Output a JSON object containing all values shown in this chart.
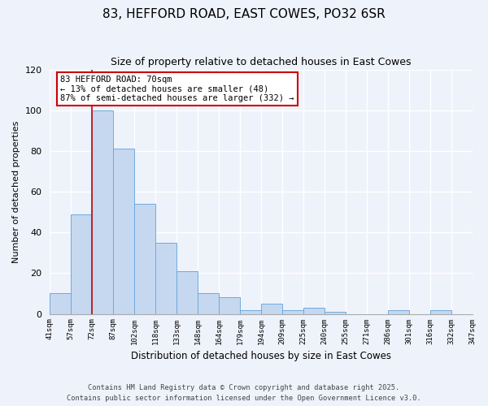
{
  "title": "83, HEFFORD ROAD, EAST COWES, PO32 6SR",
  "subtitle": "Size of property relative to detached houses in East Cowes",
  "xlabel": "Distribution of detached houses by size in East Cowes",
  "ylabel": "Number of detached properties",
  "bar_values": [
    10,
    49,
    100,
    81,
    54,
    35,
    21,
    10,
    8,
    2,
    5,
    2,
    3,
    1,
    0,
    0,
    2,
    0,
    2,
    0
  ],
  "bar_labels": [
    "41sqm",
    "57sqm",
    "72sqm",
    "87sqm",
    "102sqm",
    "118sqm",
    "133sqm",
    "148sqm",
    "164sqm",
    "179sqm",
    "194sqm",
    "209sqm",
    "225sqm",
    "240sqm",
    "255sqm",
    "271sqm",
    "286sqm",
    "301sqm",
    "316sqm",
    "332sqm",
    "347sqm"
  ],
  "bar_color": "#c5d8f0",
  "bar_edge_color": "#6eaadd",
  "vline_color": "#cc0000",
  "annotation_title": "83 HEFFORD ROAD: 70sqm",
  "annotation_line1": "← 13% of detached houses are smaller (48)",
  "annotation_line2": "87% of semi-detached houses are larger (332) →",
  "annotation_box_color": "#ffffff",
  "annotation_box_edge": "#cc0000",
  "ylim": [
    0,
    120
  ],
  "yticks": [
    0,
    20,
    40,
    60,
    80,
    100,
    120
  ],
  "footer1": "Contains HM Land Registry data © Crown copyright and database right 2025.",
  "footer2": "Contains public sector information licensed under the Open Government Licence v3.0.",
  "background_color": "#eef2fb",
  "grid_color": "#ffffff"
}
